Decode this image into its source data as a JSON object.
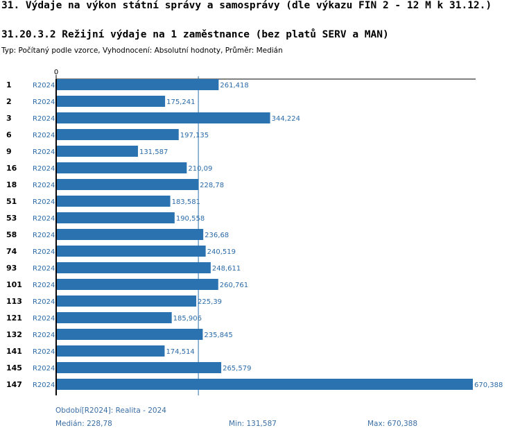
{
  "header": {
    "title": "31. Výdaje na výkon státní správy a samosprávy (dle výkazu FIN 2 - 12 M k 31.12.)",
    "chart_title": "31.20.3.2 Režijní výdaje na 1 zaměstnance (bez platů SERV a MAN)",
    "subtitle": "Typ: Počítaný podle vzorce, Vyhodnocení: Absolutní hodnoty, Průměr: Medián"
  },
  "chart_data": {
    "type": "bar",
    "orientation": "horizontal",
    "title": "31.20.3.2 Režijní výdaje na 1 zaměstnance (bez platů SERV a MAN)",
    "axis_start_label": "0",
    "xlim": [
      0,
      670.388
    ],
    "series_label": "R2024",
    "categories": [
      "1",
      "2",
      "3",
      "6",
      "9",
      "16",
      "18",
      "51",
      "53",
      "58",
      "74",
      "93",
      "101",
      "113",
      "121",
      "132",
      "141",
      "145",
      "147"
    ],
    "values": [
      261.418,
      175.241,
      344.224,
      197.135,
      131.587,
      210.09,
      228.78,
      183.581,
      190.558,
      236.68,
      240.519,
      248.611,
      260.761,
      225.39,
      185.906,
      235.845,
      174.514,
      265.579,
      670.388
    ],
    "value_labels": [
      "261,418",
      "175,241",
      "344,224",
      "197,135",
      "131,587",
      "210,09",
      "228,78",
      "183,581",
      "190,558",
      "236,68",
      "240,519",
      "248,611",
      "260,761",
      "225,39",
      "185,906",
      "235,845",
      "174,514",
      "265,579",
      "670,388"
    ],
    "median": 228.78,
    "bar_color": "#2a72b0",
    "label_color": "#2a6aa8",
    "median_line_color": "#2a72b0"
  },
  "footer": {
    "period": "Období[R2024]: Realita - 2024",
    "median": "Medián: 228,78",
    "min": "Min: 131,587",
    "max": "Max: 670,388"
  }
}
